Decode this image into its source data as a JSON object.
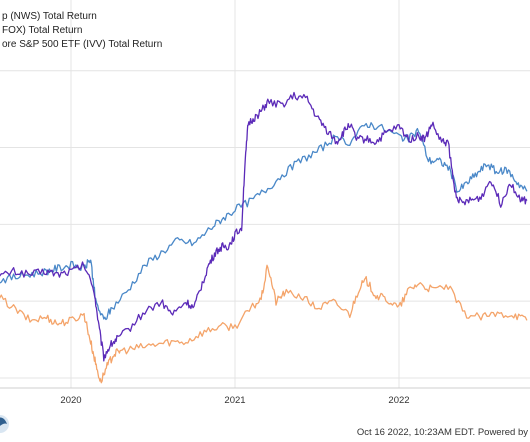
{
  "chart_data": {
    "type": "line",
    "x_ticks": [
      "2020",
      "2021",
      "2022"
    ],
    "series": [
      {
        "name": "p (NWS) Total Return",
        "color": "#5b2ab8",
        "x": [
          2019.55,
          2019.65,
          2019.75,
          2019.85,
          2019.92,
          2020.0,
          2020.08,
          2020.14,
          2020.17,
          2020.2,
          2020.24,
          2020.28,
          2020.35,
          2020.45,
          2020.55,
          2020.62,
          2020.7,
          2020.75,
          2020.8,
          2020.84,
          2020.88,
          2020.92,
          2020.96,
          2021.0,
          2021.04,
          2021.06,
          2021.08,
          2021.12,
          2021.16,
          2021.2,
          2021.28,
          2021.36,
          2021.44,
          2021.5,
          2021.56,
          2021.62,
          2021.66,
          2021.7,
          2021.74,
          2021.8,
          2021.86,
          2021.92,
          2022.0,
          2022.06,
          2022.12,
          2022.16,
          2022.2,
          2022.26,
          2022.3,
          2022.34,
          2022.38,
          2022.44,
          2022.5,
          2022.56,
          2022.62,
          2022.68,
          2022.74,
          2022.78
        ],
        "y": [
          -14,
          -12,
          -13,
          -12,
          -13,
          -12,
          -10,
          -18,
          -30,
          -40,
          -36,
          -34,
          -31,
          -25,
          -22,
          -26,
          -22,
          -24,
          -16,
          -10,
          -6,
          -4,
          -4,
          0,
          2,
          22,
          36,
          38,
          40,
          43,
          42,
          45,
          44,
          38,
          34,
          30,
          33,
          36,
          31,
          31,
          30,
          33,
          35,
          31,
          32,
          31,
          36,
          30,
          30,
          14,
          10,
          11,
          12,
          18,
          10,
          17,
          11,
          11
        ]
      },
      {
        "name": "FOX) Total Return",
        "color": "#f4a46a",
        "x": [
          2019.55,
          2019.65,
          2019.75,
          2019.85,
          2019.92,
          2020.0,
          2020.08,
          2020.12,
          2020.15,
          2020.18,
          2020.22,
          2020.26,
          2020.3,
          2020.4,
          2020.5,
          2020.6,
          2020.7,
          2020.8,
          2020.9,
          2021.0,
          2021.1,
          2021.16,
          2021.2,
          2021.25,
          2021.3,
          2021.4,
          2021.5,
          2021.6,
          2021.7,
          2021.76,
          2021.8,
          2021.86,
          2021.92,
          2022.0,
          2022.06,
          2022.12,
          2022.2,
          2022.3,
          2022.4,
          2022.5,
          2022.6,
          2022.7,
          2022.78
        ],
        "y": [
          -20,
          -24,
          -28,
          -27,
          -29,
          -28,
          -26,
          -35,
          -42,
          -48,
          -43,
          -39,
          -38,
          -37,
          -36,
          -35,
          -35,
          -32,
          -30,
          -30,
          -24,
          -21,
          -10,
          -22,
          -19,
          -20,
          -24,
          -22,
          -26,
          -17,
          -15,
          -20,
          -21,
          -24,
          -18,
          -16,
          -18,
          -17,
          -26,
          -27,
          -26,
          -26,
          -28
        ]
      },
      {
        "name": "ore S&P 500 ETF (IVV) Total Return",
        "color": "#4a88c8",
        "x": [
          2019.55,
          2019.65,
          2019.75,
          2019.85,
          2019.92,
          2020.0,
          2020.08,
          2020.12,
          2020.15,
          2020.2,
          2020.25,
          2020.35,
          2020.45,
          2020.55,
          2020.65,
          2020.75,
          2020.85,
          2020.92,
          2021.0,
          2021.1,
          2021.2,
          2021.3,
          2021.4,
          2021.5,
          2021.6,
          2021.7,
          2021.8,
          2021.88,
          2022.0,
          2022.06,
          2022.12,
          2022.18,
          2022.24,
          2022.3,
          2022.36,
          2022.42,
          2022.48,
          2022.54,
          2022.6,
          2022.66,
          2022.72,
          2022.78
        ],
        "y": [
          -15,
          -14,
          -13,
          -12,
          -11,
          -10,
          -11,
          -8,
          -22,
          -28,
          -24,
          -18,
          -10,
          -6,
          -2,
          -3,
          2,
          5,
          8,
          11,
          15,
          20,
          24,
          27,
          31,
          30,
          36,
          35,
          32,
          31,
          34,
          24,
          24,
          22,
          14,
          17,
          20,
          23,
          20,
          21,
          17,
          14
        ]
      }
    ]
  },
  "footer": {
    "timestamp": "Oct 16 2022, 10:23AM EDT. Powered by"
  }
}
